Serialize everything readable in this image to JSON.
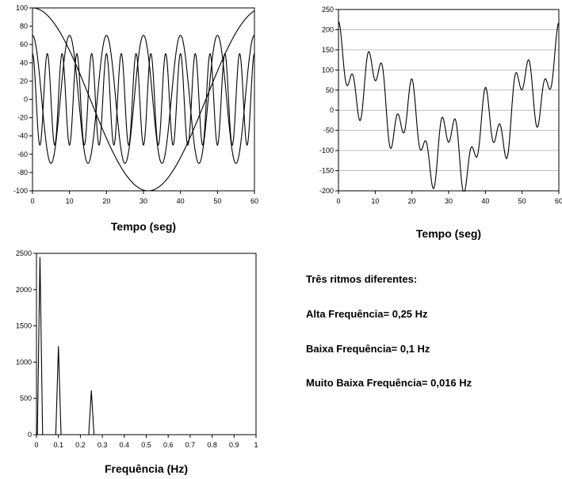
{
  "chart_data": [
    {
      "type": "line",
      "xlabel": "Tempo (seg)",
      "xlim": [
        0,
        60
      ],
      "ylim": [
        -100,
        100
      ],
      "x_ticks": [
        0,
        10,
        20,
        30,
        40,
        50,
        60
      ],
      "y_ticks": [
        100,
        80,
        60,
        40,
        20,
        0,
        -20,
        -40,
        -60,
        -80,
        -100
      ],
      "grid": false,
      "series": [
        {
          "function": "cosine",
          "amplitude": 100,
          "frequency_hz": 0.016
        },
        {
          "function": "cosine",
          "amplitude": 70,
          "frequency_hz": 0.1
        },
        {
          "function": "cosine",
          "amplitude": 50,
          "frequency_hz": 0.25
        }
      ]
    },
    {
      "type": "line",
      "xlabel": "Tempo (seg)",
      "xlim": [
        0,
        60
      ],
      "ylim": [
        -200,
        250
      ],
      "x_ticks": [
        0,
        10,
        20,
        30,
        40,
        50,
        60
      ],
      "y_ticks": [
        250,
        200,
        150,
        100,
        50,
        0,
        -50,
        -100,
        -150,
        -200
      ],
      "grid": true,
      "series": [
        {
          "function": "sum_of_cosines",
          "components": [
            {
              "amplitude": 100,
              "frequency_hz": 0.016
            },
            {
              "amplitude": 70,
              "frequency_hz": 0.1
            },
            {
              "amplitude": 50,
              "frequency_hz": 0.25
            }
          ]
        }
      ]
    },
    {
      "type": "line",
      "xlabel": "Frequência (Hz)",
      "xlim": [
        0,
        1
      ],
      "ylim": [
        0,
        2500
      ],
      "x_ticks": [
        "0",
        "0.1",
        "0.2",
        "0.3",
        "0.4",
        "0.5",
        "0.6",
        "0.7",
        "0.8",
        "0.9",
        "1"
      ],
      "y_ticks": [
        2500,
        2000,
        1500,
        1000,
        500,
        0
      ],
      "grid": false,
      "series": [
        {
          "peaks": [
            {
              "x": 0.016,
              "y": 2450
            },
            {
              "x": 0.1,
              "y": 1220
            },
            {
              "x": 0.25,
              "y": 610
            }
          ]
        }
      ]
    }
  ],
  "notes": {
    "heading": "Três ritmos diferentes:",
    "high": "Alta Frequência= 0,25 Hz",
    "low": "Baixa Frequência= 0,1 Hz",
    "very_low": "Muito Baixa Frequência= 0,016 Hz"
  }
}
